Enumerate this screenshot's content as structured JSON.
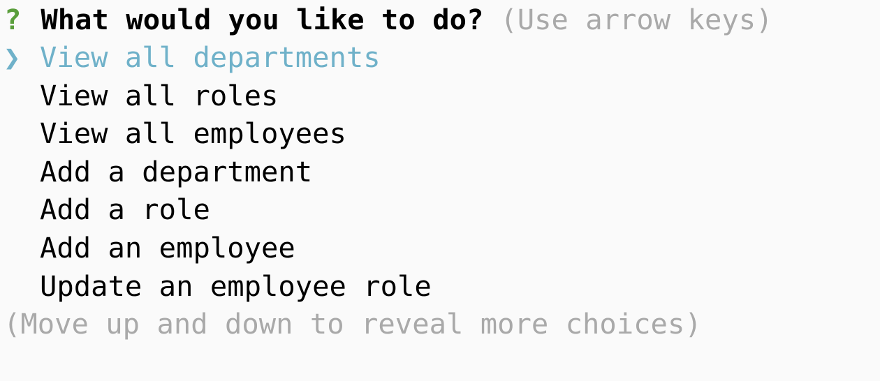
{
  "prompt": {
    "question_mark": "?",
    "question": "What would you like to do?",
    "hint": "(Use arrow keys)"
  },
  "pointer": "❯",
  "choices": [
    {
      "label": "View all departments",
      "selected": true
    },
    {
      "label": "View all roles",
      "selected": false
    },
    {
      "label": "View all employees",
      "selected": false
    },
    {
      "label": "Add a department",
      "selected": false
    },
    {
      "label": "Add a role",
      "selected": false
    },
    {
      "label": "Add an employee",
      "selected": false
    },
    {
      "label": "Update an employee role",
      "selected": false
    }
  ],
  "footer_hint": "(Move up and down to reveal more choices)",
  "colors": {
    "background": "#fafafa",
    "question_mark": "#5a9e3c",
    "selected": "#6fb1c9",
    "hint": "#a9a9a9",
    "text": "#000000"
  }
}
